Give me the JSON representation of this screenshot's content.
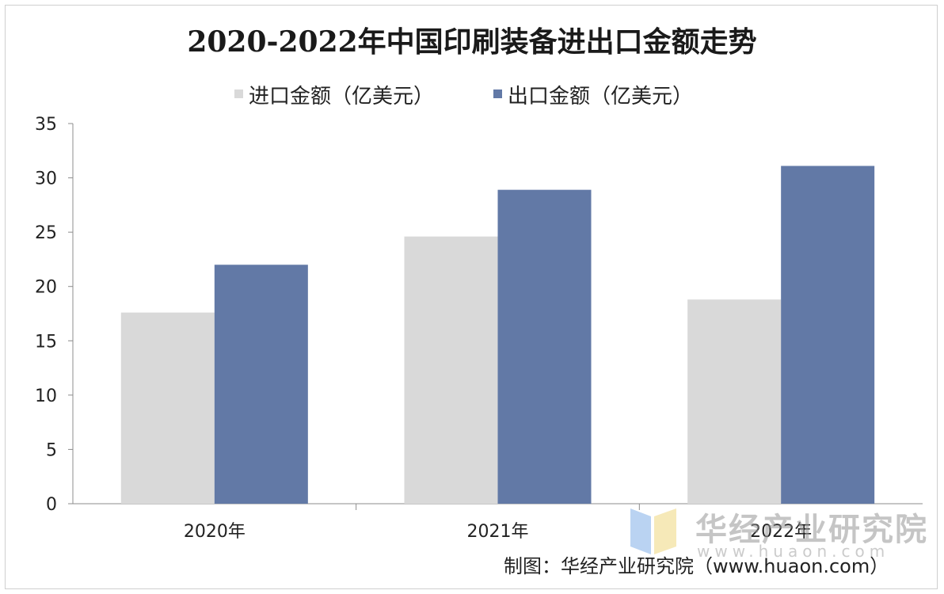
{
  "chart_data": {
    "type": "bar",
    "title": "2020-2022年中国印刷装备进出口金额走势",
    "categories": [
      "2020年",
      "2021年",
      "2022年"
    ],
    "series": [
      {
        "name": "进口金额（亿美元）",
        "values": [
          17.6,
          24.6,
          18.8
        ],
        "color": "#d9d9d9"
      },
      {
        "name": "出口金额（亿美元）",
        "values": [
          22.0,
          28.9,
          31.1
        ],
        "color": "#6279a6"
      }
    ],
    "ylim": [
      0,
      35
    ],
    "yticks": [
      "0",
      "5",
      "10",
      "15",
      "20",
      "25",
      "30",
      "35"
    ],
    "legend_position": "top",
    "grid": false
  },
  "source": "制图：华经产业研究院（www.huaon.com）",
  "watermark": {
    "name": "华经产业研究院",
    "url": "www.huaon.com"
  }
}
